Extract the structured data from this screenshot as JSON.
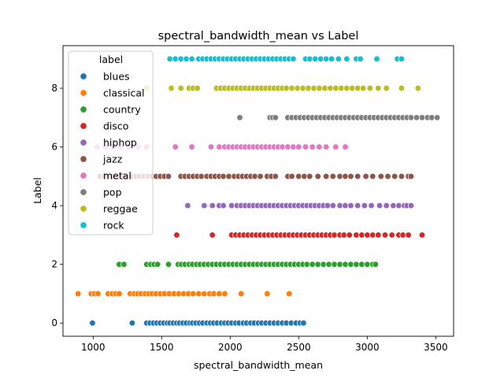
{
  "chart_data": {
    "type": "scatter",
    "title": "spectral_bandwidth_mean vs Label",
    "xlabel": "spectral_bandwidth_mean",
    "ylabel": "Label",
    "xlim": [
      780,
      3630
    ],
    "ylim": [
      -0.45,
      9.45
    ],
    "x_ticks": [
      1000,
      1500,
      2000,
      2500,
      3000,
      3500
    ],
    "y_ticks": [
      0,
      2,
      4,
      6,
      8
    ],
    "grid": false,
    "legend": {
      "title": "label",
      "placement": "top-left"
    },
    "series": [
      {
        "name": "blues",
        "color": "#1f77b4",
        "y": 0,
        "x": [
          995,
          1285,
          1390,
          1415,
          1440,
          1465,
          1490,
          1515,
          1540,
          1560,
          1585,
          1610,
          1630,
          1655,
          1680,
          1705,
          1725,
          1750,
          1775,
          1800,
          1830,
          1855,
          1880,
          1905,
          1935,
          1960,
          1985,
          2010,
          2040,
          2065,
          2095,
          2120,
          2150,
          2175,
          2205,
          2230,
          2260,
          2290,
          2320,
          2350,
          2380,
          2410,
          2445,
          2480,
          2510,
          2535
        ]
      },
      {
        "name": "classical",
        "color": "#ff7f0e",
        "y": 1,
        "x": [
          890,
          985,
          1010,
          1035,
          1110,
          1140,
          1165,
          1190,
          1270,
          1300,
          1325,
          1350,
          1380,
          1405,
          1430,
          1460,
          1490,
          1520,
          1555,
          1590,
          1625,
          1660,
          1695,
          1730,
          1770,
          1810,
          1850,
          1880,
          1920,
          1960,
          2080,
          2270,
          2430
        ]
      },
      {
        "name": "country",
        "color": "#2ca02c",
        "y": 2,
        "x": [
          1190,
          1225,
          1390,
          1420,
          1445,
          1470,
          1550,
          1620,
          1645,
          1670,
          1700,
          1725,
          1755,
          1780,
          1810,
          1840,
          1870,
          1900,
          1930,
          1960,
          1990,
          2020,
          2050,
          2080,
          2110,
          2140,
          2170,
          2200,
          2230,
          2260,
          2290,
          2320,
          2350,
          2380,
          2410,
          2440,
          2470,
          2500,
          2530,
          2560,
          2600,
          2640,
          2680,
          2720,
          2760,
          2800,
          2840,
          2880,
          2920,
          2960,
          3000,
          3040,
          3060
        ]
      },
      {
        "name": "disco",
        "color": "#d62728",
        "y": 3,
        "x": [
          1610,
          1870,
          2010,
          2040,
          2070,
          2100,
          2130,
          2160,
          2190,
          2220,
          2250,
          2280,
          2310,
          2340,
          2370,
          2400,
          2430,
          2460,
          2490,
          2520,
          2550,
          2580,
          2610,
          2640,
          2670,
          2700,
          2730,
          2760,
          2800,
          2830,
          2870,
          2920,
          2960,
          3000,
          3040,
          3080,
          3130,
          3180,
          3230,
          3260,
          3300,
          3400
        ]
      },
      {
        "name": "hiphop",
        "color": "#9467bd",
        "y": 4,
        "x": [
          1690,
          1810,
          1870,
          1920,
          1950,
          2010,
          2050,
          2080,
          2110,
          2140,
          2170,
          2200,
          2230,
          2260,
          2290,
          2320,
          2350,
          2380,
          2410,
          2440,
          2470,
          2500,
          2530,
          2560,
          2590,
          2620,
          2650,
          2680,
          2710,
          2750,
          2800,
          2840,
          2880,
          2930,
          2980,
          3030,
          3090,
          3140,
          3190,
          3230,
          3270,
          3290,
          3320
        ]
      },
      {
        "name": "jazz",
        "color": "#8c564b",
        "y": 5,
        "x": [
          1050,
          1080,
          1110,
          1140,
          1170,
          1200,
          1230,
          1280,
          1310,
          1340,
          1370,
          1400,
          1430,
          1460,
          1490,
          1520,
          1550,
          1640,
          1670,
          1700,
          1730,
          1760,
          1790,
          1830,
          1860,
          1890,
          1920,
          1950,
          1990,
          2030,
          2060,
          2090,
          2120,
          2150,
          2180,
          2220,
          2270,
          2300,
          2330,
          2420,
          2450,
          2500,
          2540,
          2580,
          2640,
          2700,
          2750,
          2800,
          2840,
          2880,
          2930,
          2990,
          3040,
          3100,
          3150,
          3200,
          3250,
          3300,
          3320
        ]
      },
      {
        "name": "metal",
        "color": "#e377c2",
        "y": 6,
        "x": [
          1030,
          1090,
          1150,
          1200,
          1260,
          1330,
          1390,
          1600,
          1720,
          1860,
          1920,
          1960,
          1990,
          2020,
          2050,
          2080,
          2110,
          2140,
          2170,
          2200,
          2230,
          2260,
          2290,
          2320,
          2350,
          2380,
          2420,
          2460,
          2500,
          2550,
          2600,
          2650,
          2700,
          2770,
          2840
        ]
      },
      {
        "name": "pop",
        "color": "#7f7f7f",
        "y": 7,
        "x": [
          2070,
          2290,
          2310,
          2330,
          2420,
          2450,
          2480,
          2510,
          2540,
          2570,
          2600,
          2630,
          2660,
          2690,
          2720,
          2750,
          2780,
          2810,
          2840,
          2870,
          2900,
          2930,
          2960,
          2990,
          3020,
          3050,
          3080,
          3110,
          3140,
          3170,
          3200,
          3230,
          3260,
          3290,
          3320,
          3360,
          3400,
          3440,
          3470,
          3510
        ]
      },
      {
        "name": "reggae",
        "color": "#bcbd22",
        "y": 8,
        "x": [
          1390,
          1570,
          1640,
          1700,
          1730,
          1760,
          1900,
          1930,
          1960,
          1990,
          2020,
          2050,
          2080,
          2110,
          2140,
          2170,
          2200,
          2230,
          2260,
          2290,
          2320,
          2350,
          2380,
          2410,
          2450,
          2490,
          2530,
          2570,
          2610,
          2650,
          2690,
          2730,
          2770,
          2810,
          2850,
          2890,
          2930,
          2970,
          3020,
          3080,
          3140,
          3250,
          3370
        ]
      },
      {
        "name": "rock",
        "color": "#17becf",
        "y": 9,
        "x": [
          1560,
          1600,
          1640,
          1680,
          1720,
          1770,
          1800,
          1830,
          1860,
          1890,
          1920,
          1950,
          1980,
          2010,
          2040,
          2070,
          2100,
          2130,
          2160,
          2190,
          2220,
          2250,
          2280,
          2310,
          2340,
          2370,
          2400,
          2430,
          2460,
          2550,
          2580,
          2620,
          2660,
          2700,
          2740,
          2790,
          2850,
          2920,
          2950,
          3070,
          3220,
          3250
        ]
      }
    ]
  }
}
